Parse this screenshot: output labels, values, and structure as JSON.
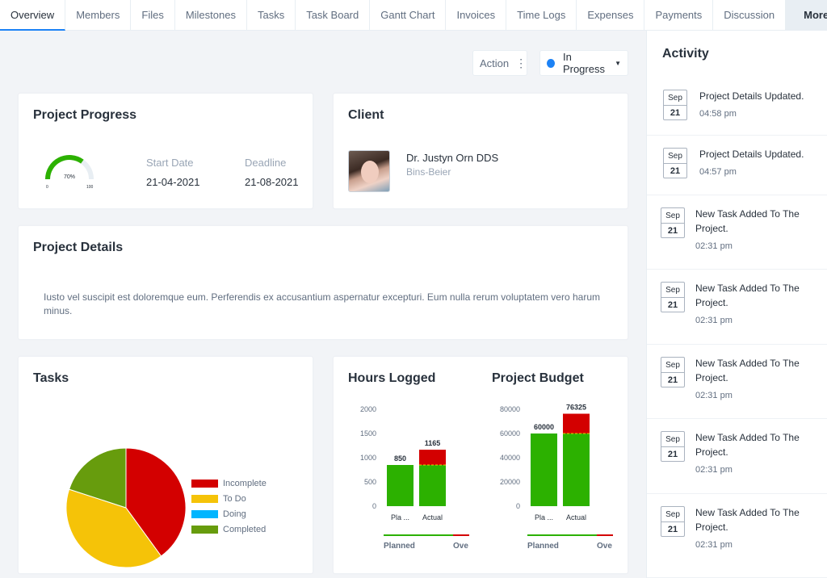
{
  "tabs": [
    {
      "label": "Overview",
      "active": true
    },
    {
      "label": "Members"
    },
    {
      "label": "Files"
    },
    {
      "label": "Milestones"
    },
    {
      "label": "Tasks"
    },
    {
      "label": "Task Board"
    },
    {
      "label": "Gantt Chart"
    },
    {
      "label": "Invoices"
    },
    {
      "label": "Time Logs"
    },
    {
      "label": "Expenses"
    },
    {
      "label": "Payments"
    },
    {
      "label": "Discussion"
    }
  ],
  "more_label": "More",
  "more_icon": "arrow-down-icon",
  "toolbar": {
    "action_label": "Action",
    "status_label": "In Progress",
    "status_color": "#1d82f5"
  },
  "progress": {
    "title": "Project Progress",
    "percent": 70,
    "percent_label": "70%",
    "gauge_min": "0",
    "gauge_max": "100",
    "start_label": "Start Date",
    "start_value": "21-04-2021",
    "deadline_label": "Deadline",
    "deadline_value": "21-08-2021"
  },
  "client": {
    "title": "Client",
    "name": "Dr. Justyn Orn DDS",
    "company": "Bins-Beier"
  },
  "details": {
    "title": "Project Details",
    "text": "Iusto vel suscipit est doloremque eum. Perferendis ex accusantium aspernatur excepturi. Eum nulla rerum voluptatem vero harum minus."
  },
  "tasks": {
    "title": "Tasks"
  },
  "hours": {
    "title": "Hours Logged"
  },
  "budget": {
    "title": "Project Budget"
  },
  "chart_data": [
    {
      "type": "pie",
      "title": "Tasks",
      "categories": [
        "Incomplete",
        "To Do",
        "Doing",
        "Completed"
      ],
      "values": [
        40,
        40,
        0,
        20
      ],
      "colors": [
        "#d30000",
        "#f5c308",
        "#00b5ff",
        "#679c0d"
      ],
      "legend": "right"
    },
    {
      "type": "bar",
      "title": "Hours Logged",
      "categories": [
        "Pla ...",
        "Actual"
      ],
      "values": [
        850,
        1165
      ],
      "overrun": [
        0,
        315
      ],
      "data_labels": [
        "850",
        "1165"
      ],
      "ylim": [
        0,
        2000
      ],
      "yticks": [
        "0",
        "500",
        "1000",
        "1500",
        "2000"
      ],
      "colors": {
        "base": "#2cb100",
        "overrun": "#d30000"
      },
      "footer_left": "Planned",
      "footer_right": "Ove"
    },
    {
      "type": "bar",
      "title": "Project Budget",
      "categories": [
        "Pla ...",
        "Actual"
      ],
      "values": [
        60000,
        76325
      ],
      "overrun": [
        0,
        16325
      ],
      "data_labels": [
        "60000",
        "76325"
      ],
      "ylim": [
        0,
        80000
      ],
      "yticks": [
        "0",
        "20000",
        "40000",
        "60000",
        "80000"
      ],
      "colors": {
        "base": "#2cb100",
        "overrun": "#d30000"
      },
      "footer_left": "Planned",
      "footer_right": "Ove"
    }
  ],
  "activity": {
    "title": "Activity",
    "items": [
      {
        "month": "Sep",
        "day": "21",
        "text": "Project Details Updated.",
        "time": "04:58 pm"
      },
      {
        "month": "Sep",
        "day": "21",
        "text": "Project Details Updated.",
        "time": "04:57 pm"
      },
      {
        "month": "Sep",
        "day": "21",
        "text": "New Task Added To The Project.",
        "time": "02:31 pm"
      },
      {
        "month": "Sep",
        "day": "21",
        "text": "New Task Added To The Project.",
        "time": "02:31 pm"
      },
      {
        "month": "Sep",
        "day": "21",
        "text": "New Task Added To The Project.",
        "time": "02:31 pm"
      },
      {
        "month": "Sep",
        "day": "21",
        "text": "New Task Added To The Project.",
        "time": "02:31 pm"
      },
      {
        "month": "Sep",
        "day": "21",
        "text": "New Task Added To The Project.",
        "time": "02:31 pm"
      }
    ]
  }
}
